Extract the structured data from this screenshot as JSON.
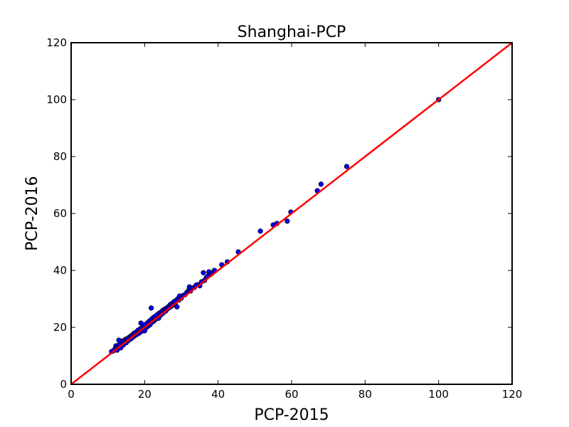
{
  "chart_data": {
    "type": "scatter",
    "title": "Shanghai-PCP",
    "xlabel": "PCP-2015",
    "ylabel": "PCP-2016",
    "xlim": [
      0,
      120
    ],
    "ylim": [
      0,
      120
    ],
    "xticks": [
      0,
      20,
      40,
      60,
      80,
      100,
      120
    ],
    "yticks": [
      0,
      20,
      40,
      60,
      80,
      100,
      120
    ],
    "grid": false,
    "legend": "none",
    "marker_color": "#0000ff",
    "line_color": "#ff0000",
    "reference_line": {
      "x": [
        0,
        120
      ],
      "y": [
        0,
        120
      ]
    },
    "series": [
      {
        "points": [
          [
            11.0,
            11.5
          ],
          [
            11.5,
            11.8
          ],
          [
            12.0,
            12.6
          ],
          [
            12.2,
            13.5
          ],
          [
            12.5,
            12.0
          ],
          [
            12.8,
            13.2
          ],
          [
            13.0,
            13.8
          ],
          [
            13.0,
            15.5
          ],
          [
            13.3,
            14.0
          ],
          [
            13.5,
            12.8
          ],
          [
            13.8,
            14.6
          ],
          [
            14.0,
            15.2
          ],
          [
            14.2,
            13.8
          ],
          [
            14.5,
            15.0
          ],
          [
            14.8,
            15.8
          ],
          [
            15.0,
            14.6
          ],
          [
            15.2,
            16.0
          ],
          [
            15.5,
            15.3
          ],
          [
            15.8,
            16.5
          ],
          [
            16.0,
            15.8
          ],
          [
            16.3,
            17.0
          ],
          [
            16.5,
            16.2
          ],
          [
            16.8,
            17.5
          ],
          [
            17.0,
            16.8
          ],
          [
            17.2,
            18.0
          ],
          [
            17.5,
            17.2
          ],
          [
            17.8,
            18.4
          ],
          [
            18.0,
            17.6
          ],
          [
            18.2,
            19.0
          ],
          [
            18.5,
            18.0
          ],
          [
            18.8,
            19.5
          ],
          [
            19.0,
            21.5
          ],
          [
            19.2,
            18.6
          ],
          [
            19.5,
            20.2
          ],
          [
            19.8,
            19.4
          ],
          [
            20.0,
            18.8
          ],
          [
            20.2,
            21.0
          ],
          [
            20.5,
            20.0
          ],
          [
            20.8,
            21.6
          ],
          [
            21.0,
            20.5
          ],
          [
            21.3,
            22.2
          ],
          [
            21.5,
            21.0
          ],
          [
            21.8,
            22.5
          ],
          [
            21.8,
            26.8
          ],
          [
            22.0,
            23.0
          ],
          [
            22.3,
            22.0
          ],
          [
            22.5,
            23.5
          ],
          [
            22.8,
            22.6
          ],
          [
            23.0,
            24.0
          ],
          [
            23.3,
            23.2
          ],
          [
            23.5,
            24.5
          ],
          [
            23.8,
            23.2
          ],
          [
            24.0,
            25.0
          ],
          [
            24.3,
            24.2
          ],
          [
            24.5,
            25.4
          ],
          [
            24.8,
            24.8
          ],
          [
            25.0,
            26.0
          ],
          [
            25.3,
            25.4
          ],
          [
            25.5,
            26.4
          ],
          [
            25.8,
            25.8
          ],
          [
            26.0,
            26.8
          ],
          [
            26.3,
            26.6
          ],
          [
            26.5,
            27.3
          ],
          [
            26.8,
            27.0
          ],
          [
            27.0,
            28.0
          ],
          [
            27.3,
            27.5
          ],
          [
            27.5,
            28.4
          ],
          [
            27.8,
            27.9
          ],
          [
            28.0,
            29.0
          ],
          [
            28.3,
            28.5
          ],
          [
            28.5,
            29.4
          ],
          [
            28.8,
            27.2
          ],
          [
            29.0,
            30.0
          ],
          [
            29.3,
            29.6
          ],
          [
            29.5,
            31.0
          ],
          [
            30.0,
            30.3
          ],
          [
            30.5,
            31.2
          ],
          [
            31.0,
            31.5
          ],
          [
            31.5,
            32.3
          ],
          [
            32.0,
            33.0
          ],
          [
            32.2,
            34.2
          ],
          [
            32.5,
            32.8
          ],
          [
            33.0,
            33.8
          ],
          [
            33.5,
            34.0
          ],
          [
            34.0,
            34.8
          ],
          [
            34.5,
            35.0
          ],
          [
            35.0,
            34.6
          ],
          [
            35.5,
            36.0
          ],
          [
            36.0,
            39.2
          ],
          [
            36.3,
            36.5
          ],
          [
            36.8,
            37.5
          ],
          [
            37.2,
            38.0
          ],
          [
            37.5,
            39.5
          ],
          [
            38.0,
            38.6
          ],
          [
            38.5,
            39.2
          ],
          [
            39.0,
            40.0
          ],
          [
            41.0,
            42.0
          ],
          [
            42.5,
            43.0
          ],
          [
            45.5,
            46.5
          ],
          [
            51.5,
            53.8
          ],
          [
            55.0,
            56.0
          ],
          [
            56.0,
            56.5
          ],
          [
            58.8,
            57.3
          ],
          [
            59.8,
            60.5
          ],
          [
            67.0,
            68.0
          ],
          [
            68.0,
            70.3
          ],
          [
            75.0,
            76.5
          ],
          [
            100.0,
            100.0
          ]
        ]
      }
    ]
  }
}
